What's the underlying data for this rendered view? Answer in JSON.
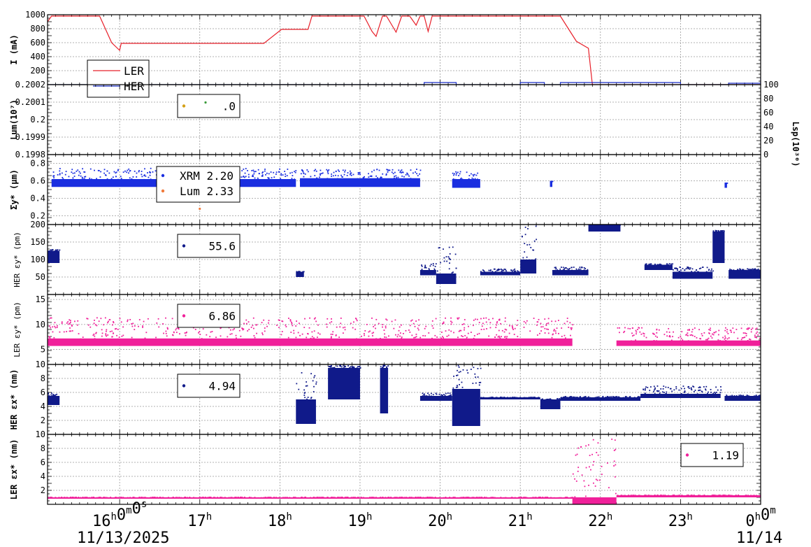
{
  "chart_data": {
    "type": "scatter",
    "x_axis": {
      "tick_labels": [
        "16h0m0s",
        "17h",
        "18h",
        "19h",
        "20h",
        "21h",
        "22h",
        "23h",
        "0h0m"
      ],
      "hour_ticks": [
        16,
        17,
        18,
        19,
        20,
        21,
        22,
        23,
        24
      ],
      "xlim_hours": [
        15.1,
        24.0
      ],
      "date_left": "11/13/2025",
      "date_right": "11/14"
    },
    "panels": [
      {
        "id": "current",
        "ylabel": "I (mA)",
        "ylim": [
          0,
          1000
        ],
        "yticks": [
          "200",
          "400",
          "600",
          "800",
          "1000"
        ],
        "right_axis": null,
        "legend": [
          {
            "label": "LER",
            "color": "#e8202a"
          },
          {
            "label": "HER",
            "color": "#1a2ec8"
          }
        ],
        "series": [
          {
            "name": "LER",
            "color": "#e8202a",
            "style": "line",
            "points": [
              [
                15.1,
                900
              ],
              [
                15.15,
                980
              ],
              [
                15.75,
                980
              ],
              [
                15.9,
                600
              ],
              [
                16.0,
                490
              ],
              [
                16.02,
                590
              ],
              [
                17.8,
                590
              ],
              [
                18.02,
                790
              ],
              [
                18.1,
                790
              ],
              [
                18.35,
                790
              ],
              [
                18.4,
                980
              ],
              [
                19.05,
                980
              ],
              [
                19.15,
                760
              ],
              [
                19.2,
                690
              ],
              [
                19.28,
                980
              ],
              [
                19.33,
                980
              ],
              [
                19.45,
                750
              ],
              [
                19.52,
                980
              ],
              [
                19.62,
                980
              ],
              [
                19.7,
                850
              ],
              [
                19.75,
                980
              ],
              [
                19.8,
                980
              ],
              [
                19.85,
                760
              ],
              [
                19.9,
                980
              ],
              [
                21.5,
                980
              ],
              [
                21.7,
                620
              ],
              [
                21.85,
                520
              ],
              [
                21.9,
                0
              ],
              [
                24.0,
                0
              ]
            ]
          },
          {
            "name": "HER",
            "color": "#1a2ec8",
            "style": "line",
            "points": [
              [
                15.1,
                0
              ],
              [
                19.8,
                0
              ],
              [
                19.8,
                30
              ],
              [
                20.2,
                30
              ],
              [
                20.2,
                0
              ],
              [
                21.0,
                0
              ],
              [
                21.0,
                30
              ],
              [
                21.3,
                30
              ],
              [
                21.3,
                0
              ],
              [
                21.5,
                0
              ],
              [
                21.5,
                30
              ],
              [
                23.0,
                30
              ],
              [
                23.0,
                0
              ],
              [
                23.6,
                0
              ],
              [
                23.6,
                20
              ],
              [
                24.0,
                20
              ],
              [
                24.0,
                100
              ]
            ]
          }
        ]
      },
      {
        "id": "luminosity",
        "ylabel": "Lum(10⁷)",
        "ylim": [
          0.1998,
          0.2002
        ],
        "yticks": [
          "0.1998",
          "0.1999",
          "0.2",
          "0.2001",
          "0.2002"
        ],
        "right_axis": {
          "label": "Lsp(10³⁰)",
          "ticks": [
            "0",
            "20",
            "40",
            "60",
            "80",
            "100"
          ]
        },
        "legend": [
          {
            "color": "#d4a017",
            "value": ".0"
          }
        ],
        "series": [
          {
            "color": "#3a9a3a",
            "style": "points",
            "points": [
              [
                17.0,
                0.20009
              ],
              [
                17.0,
                0.200098
              ]
            ]
          }
        ]
      },
      {
        "id": "sigma_y",
        "ylabel": "Σy* (μm)",
        "ylim": [
          0.1,
          0.9
        ],
        "yticks": [
          "0.2",
          "0.4",
          "0.6",
          "0.8"
        ],
        "right_axis": null,
        "legend": [
          {
            "label": "XRM 2.20",
            "color": "#1a2ee0"
          },
          {
            "label": "Lum 2.33",
            "color": "#f07a3a"
          }
        ],
        "series": [
          {
            "name": "XRM",
            "color": "#1a2ee0",
            "style": "band",
            "segments": [
              {
                "x0": 15.15,
                "x1": 18.2,
                "lo": 0.53,
                "hi": 0.62,
                "sparse_hi": 0.75
              },
              {
                "x0": 18.25,
                "x1": 19.75,
                "lo": 0.53,
                "hi": 0.63,
                "sparse_hi": 0.74
              },
              {
                "x0": 20.15,
                "x1": 20.5,
                "lo": 0.52,
                "hi": 0.62,
                "sparse_hi": 0.72
              },
              {
                "x0": 21.37,
                "x1": 21.4,
                "lo": 0.53,
                "hi": 0.6,
                "sparse_hi": 0.6
              },
              {
                "x0": 23.55,
                "x1": 23.58,
                "lo": 0.52,
                "hi": 0.58,
                "sparse_hi": 0.58
              }
            ]
          },
          {
            "name": "Lum",
            "color": "#f07a3a",
            "style": "points",
            "points": [
              [
                17.0,
                0.28
              ]
            ]
          }
        ]
      },
      {
        "id": "her_eps_y",
        "ylabel": "HER εy* (pm)",
        "ylim": [
          0,
          200
        ],
        "yticks": [
          "50",
          "100",
          "150",
          "200"
        ],
        "right_axis": null,
        "legend": [
          {
            "color": "#101a8a",
            "value": "55.6"
          }
        ],
        "series": [
          {
            "color": "#101a8a",
            "style": "band",
            "segments": [
              {
                "x0": 15.1,
                "x1": 15.25,
                "lo": 90,
                "hi": 125,
                "sparse_hi": 130
              },
              {
                "x0": 18.2,
                "x1": 18.3,
                "lo": 50,
                "hi": 65,
                "sparse_hi": 68
              },
              {
                "x0": 19.75,
                "x1": 19.95,
                "lo": 55,
                "hi": 70,
                "sparse_hi": 90
              },
              {
                "x0": 19.95,
                "x1": 20.2,
                "lo": 30,
                "hi": 60,
                "sparse_hi": 140
              },
              {
                "x0": 20.5,
                "x1": 21.0,
                "lo": 55,
                "hi": 65,
                "sparse_hi": 75
              },
              {
                "x0": 21.0,
                "x1": 21.2,
                "lo": 60,
                "hi": 100,
                "sparse_hi": 200
              },
              {
                "x0": 21.4,
                "x1": 21.85,
                "lo": 55,
                "hi": 70,
                "sparse_hi": 80
              },
              {
                "x0": 21.85,
                "x1": 22.25,
                "lo": 180,
                "hi": 200,
                "sparse_hi": 200
              },
              {
                "x0": 22.55,
                "x1": 22.9,
                "lo": 70,
                "hi": 85,
                "sparse_hi": 90
              },
              {
                "x0": 22.9,
                "x1": 23.4,
                "lo": 45,
                "hi": 65,
                "sparse_hi": 80
              },
              {
                "x0": 23.4,
                "x1": 23.55,
                "lo": 90,
                "hi": 180,
                "sparse_hi": 185
              },
              {
                "x0": 23.6,
                "x1": 24.0,
                "lo": 45,
                "hi": 70,
                "sparse_hi": 75
              }
            ]
          }
        ]
      },
      {
        "id": "ler_eps_y",
        "ylabel": "LER εy* (pm)",
        "ylim": [
          2,
          16
        ],
        "yticks": [
          "5",
          "10",
          "15"
        ],
        "right_axis": null,
        "legend": [
          {
            "color": "#f0209a",
            "value": "6.86"
          }
        ],
        "series": [
          {
            "color": "#f0209a",
            "style": "band",
            "segments": [
              {
                "x0": 15.1,
                "x1": 21.65,
                "lo": 5.7,
                "hi": 7.2,
                "sparse_hi": 11.5
              },
              {
                "x0": 22.2,
                "x1": 24.0,
                "lo": 5.7,
                "hi": 6.8,
                "sparse_hi": 9.5
              }
            ]
          }
        ]
      },
      {
        "id": "her_eps_x",
        "ylabel": "HER εx* (nm)",
        "ylim": [
          0,
          10
        ],
        "yticks": [
          "2",
          "4",
          "6",
          "8",
          "10"
        ],
        "right_axis": null,
        "legend": [
          {
            "color": "#101a8a",
            "value": "4.94"
          }
        ],
        "series": [
          {
            "color": "#101a8a",
            "style": "band",
            "segments": [
              {
                "x0": 15.1,
                "x1": 15.25,
                "lo": 4.2,
                "hi": 5.5,
                "sparse_hi": 6.0
              },
              {
                "x0": 18.2,
                "x1": 18.45,
                "lo": 1.5,
                "hi": 5.0,
                "sparse_hi": 9.0
              },
              {
                "x0": 18.6,
                "x1": 19.0,
                "lo": 5.0,
                "hi": 9.5,
                "sparse_hi": 10.0
              },
              {
                "x0": 19.25,
                "x1": 19.35,
                "lo": 3.0,
                "hi": 9.5,
                "sparse_hi": 10.0
              },
              {
                "x0": 19.75,
                "x1": 20.15,
                "lo": 4.8,
                "hi": 5.5,
                "sparse_hi": 6.0
              },
              {
                "x0": 20.15,
                "x1": 20.5,
                "lo": 1.2,
                "hi": 6.5,
                "sparse_hi": 10.0
              },
              {
                "x0": 20.5,
                "x1": 21.25,
                "lo": 5.0,
                "hi": 5.3,
                "sparse_hi": 5.4
              },
              {
                "x0": 21.25,
                "x1": 21.5,
                "lo": 3.6,
                "hi": 5.0,
                "sparse_hi": 5.2
              },
              {
                "x0": 21.5,
                "x1": 22.5,
                "lo": 4.8,
                "hi": 5.3,
                "sparse_hi": 5.5
              },
              {
                "x0": 22.5,
                "x1": 23.5,
                "lo": 5.2,
                "hi": 5.8,
                "sparse_hi": 7.0
              },
              {
                "x0": 23.55,
                "x1": 24.0,
                "lo": 4.8,
                "hi": 5.5,
                "sparse_hi": 5.7
              }
            ]
          }
        ]
      },
      {
        "id": "ler_eps_x",
        "ylabel": "LER εx* (nm)",
        "ylim": [
          0,
          10
        ],
        "yticks": [
          "2",
          "4",
          "6",
          "8",
          "10"
        ],
        "right_axis": null,
        "legend": [
          {
            "color": "#f0209a",
            "value": "1.19"
          }
        ],
        "series": [
          {
            "color": "#f0209a",
            "style": "band",
            "segments": [
              {
                "x0": 15.1,
                "x1": 21.65,
                "lo": 0.8,
                "hi": 1.0,
                "sparse_hi": 1.1
              },
              {
                "x0": 21.65,
                "x1": 22.2,
                "lo": 0.0,
                "hi": 1.0,
                "sparse_hi": 9.5
              },
              {
                "x0": 22.2,
                "x1": 24.0,
                "lo": 1.0,
                "hi": 1.3,
                "sparse_hi": 1.4
              }
            ]
          }
        ]
      }
    ]
  }
}
